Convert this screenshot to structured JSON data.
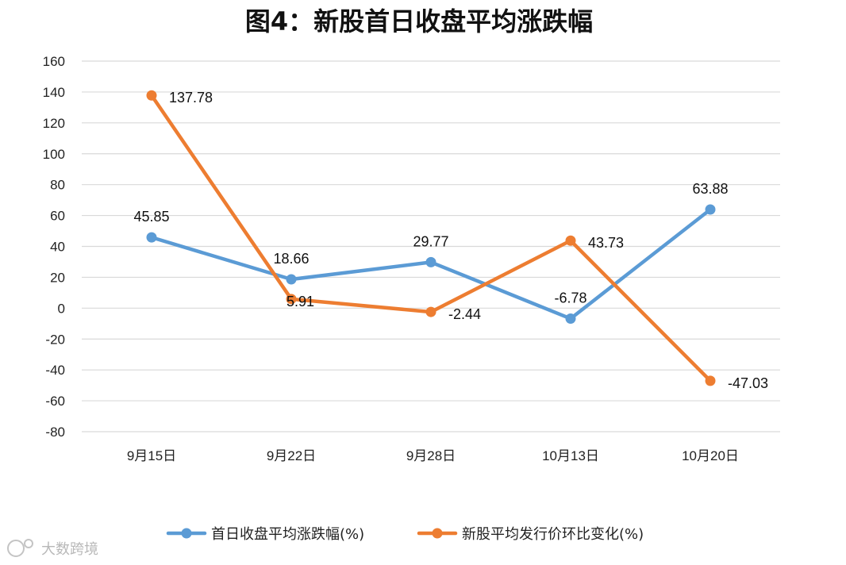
{
  "chart_data": {
    "type": "line",
    "title": "图4：新股首日收盘平均涨跌幅",
    "categories": [
      "9月15日",
      "9月22日",
      "9月28日",
      "10月13日",
      "10月20日"
    ],
    "series": [
      {
        "name": "首日收盘平均涨跌幅(%)",
        "color": "#5b9bd5",
        "values": [
          45.85,
          18.66,
          29.77,
          -6.78,
          63.88
        ],
        "labels": [
          "45.85",
          "18.66",
          "29.77",
          "-6.78",
          "63.88"
        ]
      },
      {
        "name": "新股平均发行价环比变化(%)",
        "color": "#ed7d31",
        "values": [
          137.78,
          5.91,
          -2.44,
          43.73,
          -47.03
        ],
        "labels": [
          "137.78",
          "5.91",
          "-2.44",
          "43.73",
          "-47.03"
        ]
      }
    ],
    "ylim": [
      -80,
      160
    ],
    "yticks": [
      "160",
      "140",
      "120",
      "100",
      "80",
      "60",
      "40",
      "20",
      "0",
      "-20",
      "-40",
      "-60",
      "-80"
    ],
    "grid": true,
    "legend_position": "bottom"
  },
  "watermark": {
    "text": "大数跨境"
  }
}
